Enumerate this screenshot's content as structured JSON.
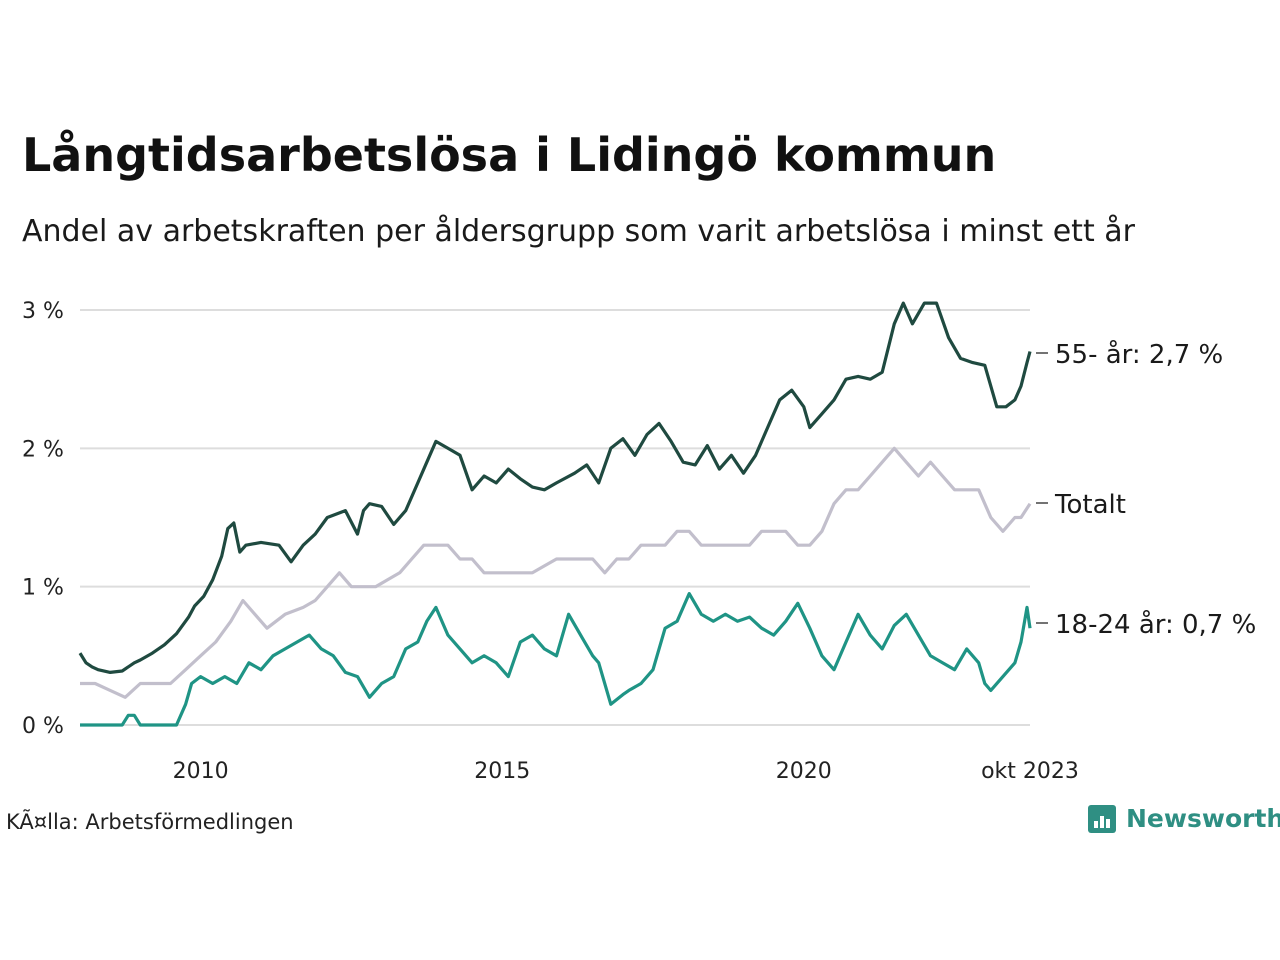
{
  "title": "Långtidsarbetslösa i Lidingö kommun",
  "subtitle": "Andel av arbetskraften per åldersgrupp som varit arbetslösa i minst ett år",
  "source": "KÃ¤lla: Arbetsförmedlingen",
  "logo": {
    "icon": "bar-chart-icon",
    "text": "Newsworthy"
  },
  "colors": {
    "s55": "#1f4a40",
    "total": "#c2bfcc",
    "s1824": "#1f9485",
    "grid": "#dddddd",
    "accent": "#2f8f83"
  },
  "chart_data": {
    "type": "line",
    "title": "Långtidsarbetslösa i Lidingö kommun",
    "xlabel": "",
    "ylabel": "",
    "xlim": [
      2008.0,
      2023.75
    ],
    "ylim": [
      0,
      3
    ],
    "y_ticks": [
      0,
      1,
      2,
      3
    ],
    "y_tick_labels": [
      "0 %",
      "1 %",
      "2 %",
      "3 %"
    ],
    "x_ticks": [
      2010,
      2015,
      2020,
      2023.75
    ],
    "x_tick_labels": [
      "2010",
      "2015",
      "2020",
      "okt 2023"
    ],
    "grid": true,
    "series": [
      {
        "name": "55- år",
        "label": "55- år: 2,7 %",
        "color": "#1f4a40",
        "x": [
          2008.0,
          2008.1,
          2008.2,
          2008.3,
          2008.5,
          2008.7,
          2008.9,
          2009.0,
          2009.2,
          2009.4,
          2009.6,
          2009.8,
          2009.9,
          2010.05,
          2010.2,
          2010.35,
          2010.45,
          2010.55,
          2010.65,
          2010.75,
          2011.0,
          2011.3,
          2011.5,
          2011.7,
          2011.9,
          2012.1,
          2012.4,
          2012.6,
          2012.7,
          2012.8,
          2013.0,
          2013.2,
          2013.4,
          2013.6,
          2013.75,
          2013.9,
          2014.1,
          2014.3,
          2014.5,
          2014.7,
          2014.9,
          2015.1,
          2015.3,
          2015.5,
          2015.7,
          2015.9,
          2016.2,
          2016.4,
          2016.6,
          2016.8,
          2017.0,
          2017.2,
          2017.4,
          2017.6,
          2017.8,
          2018.0,
          2018.2,
          2018.4,
          2018.6,
          2018.8,
          2019.0,
          2019.2,
          2019.4,
          2019.6,
          2019.8,
          2020.0,
          2020.1,
          2020.3,
          2020.5,
          2020.7,
          2020.9,
          2021.1,
          2021.3,
          2021.5,
          2021.65,
          2021.8,
          2022.0,
          2022.2,
          2022.4,
          2022.6,
          2022.8,
          2023.0,
          2023.2,
          2023.35,
          2023.5,
          2023.6,
          2023.7,
          2023.75
        ],
        "y": [
          0.52,
          0.45,
          0.42,
          0.4,
          0.38,
          0.39,
          0.45,
          0.47,
          0.52,
          0.58,
          0.66,
          0.78,
          0.86,
          0.93,
          1.05,
          1.22,
          1.42,
          1.46,
          1.25,
          1.3,
          1.32,
          1.3,
          1.18,
          1.3,
          1.38,
          1.5,
          1.55,
          1.38,
          1.55,
          1.6,
          1.58,
          1.45,
          1.55,
          1.75,
          1.9,
          2.05,
          2.0,
          1.95,
          1.7,
          1.8,
          1.75,
          1.85,
          1.78,
          1.72,
          1.7,
          1.75,
          1.82,
          1.88,
          1.75,
          2.0,
          2.07,
          1.95,
          2.1,
          2.18,
          2.05,
          1.9,
          1.88,
          2.02,
          1.85,
          1.95,
          1.82,
          1.95,
          2.15,
          2.35,
          2.42,
          2.3,
          2.15,
          2.25,
          2.35,
          2.5,
          2.52,
          2.5,
          2.55,
          2.9,
          3.05,
          2.9,
          3.05,
          3.05,
          2.8,
          2.65,
          2.62,
          2.6,
          2.3,
          2.3,
          2.35,
          2.45,
          2.62,
          2.7
        ]
      },
      {
        "name": "Totalt",
        "label": "Totalt",
        "color": "#c2bfcc",
        "x": [
          2008.0,
          2008.25,
          2008.5,
          2008.75,
          2009.0,
          2009.25,
          2009.5,
          2009.75,
          2010.0,
          2010.25,
          2010.5,
          2010.7,
          2010.9,
          2011.1,
          2011.4,
          2011.7,
          2011.9,
          2012.1,
          2012.3,
          2012.5,
          2012.7,
          2012.9,
          2013.1,
          2013.3,
          2013.5,
          2013.7,
          2013.9,
          2014.1,
          2014.3,
          2014.5,
          2014.7,
          2014.9,
          2015.1,
          2015.3,
          2015.5,
          2015.7,
          2015.9,
          2016.1,
          2016.3,
          2016.5,
          2016.7,
          2016.9,
          2017.1,
          2017.3,
          2017.5,
          2017.7,
          2017.9,
          2018.1,
          2018.3,
          2018.5,
          2018.7,
          2018.9,
          2019.1,
          2019.3,
          2019.5,
          2019.7,
          2019.9,
          2020.1,
          2020.3,
          2020.5,
          2020.7,
          2020.9,
          2021.1,
          2021.3,
          2021.5,
          2021.7,
          2021.9,
          2022.1,
          2022.3,
          2022.5,
          2022.7,
          2022.9,
          2023.1,
          2023.3,
          2023.5,
          2023.6,
          2023.75
        ],
        "y": [
          0.3,
          0.3,
          0.25,
          0.2,
          0.3,
          0.3,
          0.3,
          0.4,
          0.5,
          0.6,
          0.75,
          0.9,
          0.8,
          0.7,
          0.8,
          0.85,
          0.9,
          1.0,
          1.1,
          1.0,
          1.0,
          1.0,
          1.05,
          1.1,
          1.2,
          1.3,
          1.3,
          1.3,
          1.2,
          1.2,
          1.1,
          1.1,
          1.1,
          1.1,
          1.1,
          1.15,
          1.2,
          1.2,
          1.2,
          1.2,
          1.1,
          1.2,
          1.2,
          1.3,
          1.3,
          1.3,
          1.4,
          1.4,
          1.3,
          1.3,
          1.3,
          1.3,
          1.3,
          1.4,
          1.4,
          1.4,
          1.3,
          1.3,
          1.4,
          1.6,
          1.7,
          1.7,
          1.8,
          1.9,
          2.0,
          1.9,
          1.8,
          1.9,
          1.8,
          1.7,
          1.7,
          1.7,
          1.5,
          1.4,
          1.5,
          1.5,
          1.6
        ]
      },
      {
        "name": "18-24 år",
        "label": "18-24 år: 0,7 %",
        "color": "#1f9485",
        "x": [
          2008.0,
          2008.4,
          2008.7,
          2008.8,
          2008.9,
          2009.0,
          2009.2,
          2009.4,
          2009.6,
          2009.75,
          2009.85,
          2010.0,
          2010.2,
          2010.4,
          2010.6,
          2010.8,
          2011.0,
          2011.2,
          2011.4,
          2011.6,
          2011.8,
          2012.0,
          2012.2,
          2012.4,
          2012.6,
          2012.8,
          2013.0,
          2013.2,
          2013.4,
          2013.6,
          2013.75,
          2013.9,
          2014.1,
          2014.3,
          2014.5,
          2014.7,
          2014.9,
          2015.1,
          2015.3,
          2015.5,
          2015.7,
          2015.9,
          2016.1,
          2016.3,
          2016.5,
          2016.6,
          2016.8,
          2017.0,
          2017.1,
          2017.3,
          2017.5,
          2017.7,
          2017.9,
          2018.1,
          2018.3,
          2018.5,
          2018.7,
          2018.9,
          2019.1,
          2019.3,
          2019.5,
          2019.7,
          2019.9,
          2020.1,
          2020.3,
          2020.5,
          2020.7,
          2020.9,
          2021.1,
          2021.3,
          2021.5,
          2021.7,
          2021.9,
          2022.1,
          2022.3,
          2022.5,
          2022.7,
          2022.9,
          2023.0,
          2023.1,
          2023.3,
          2023.5,
          2023.6,
          2023.7,
          2023.75
        ],
        "y": [
          0.0,
          0.0,
          0.0,
          0.07,
          0.07,
          0.0,
          0.0,
          0.0,
          0.0,
          0.15,
          0.3,
          0.35,
          0.3,
          0.35,
          0.3,
          0.45,
          0.4,
          0.5,
          0.55,
          0.6,
          0.65,
          0.55,
          0.5,
          0.38,
          0.35,
          0.2,
          0.3,
          0.35,
          0.55,
          0.6,
          0.75,
          0.85,
          0.65,
          0.55,
          0.45,
          0.5,
          0.45,
          0.35,
          0.6,
          0.65,
          0.55,
          0.5,
          0.8,
          0.65,
          0.5,
          0.45,
          0.15,
          0.22,
          0.25,
          0.3,
          0.4,
          0.7,
          0.75,
          0.95,
          0.8,
          0.75,
          0.8,
          0.75,
          0.78,
          0.7,
          0.65,
          0.75,
          0.88,
          0.7,
          0.5,
          0.4,
          0.6,
          0.8,
          0.65,
          0.55,
          0.72,
          0.8,
          0.65,
          0.5,
          0.45,
          0.4,
          0.55,
          0.45,
          0.3,
          0.25,
          0.35,
          0.45,
          0.6,
          0.85,
          0.7
        ]
      }
    ]
  }
}
